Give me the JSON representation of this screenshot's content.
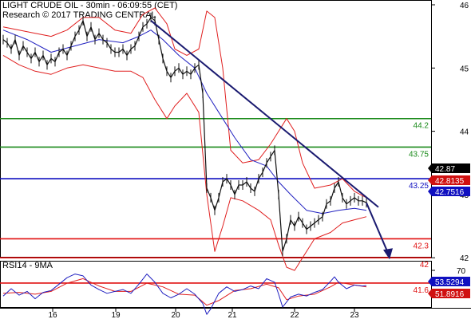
{
  "header": {
    "line1": "LIGHT CRUDE OIL - 30min - 06:09:55 (CET)",
    "line2": "Research © 2017 TRADING CENTRAL"
  },
  "rsi_header": "RSI14 - 9MA",
  "colors": {
    "price": "#111111",
    "bollinger": "#e02020",
    "moving_average": "#2020c0",
    "trendline": "#1a1a70",
    "resistance": "#1a8a1a",
    "pivot": "#1010c0",
    "support": "#e01010",
    "tag_black": "#000000",
    "tag_red": "#d01010",
    "tag_blue": "#1010c0"
  },
  "chart_data": [
    {
      "type": "line",
      "title": "LIGHT CRUDE OIL - 30min",
      "y_ticks": [
        46,
        45,
        44,
        43,
        42
      ],
      "ylim": [
        41.4,
        46.1
      ],
      "x_ticks": [
        "16",
        "19",
        "20",
        "21",
        "22",
        "23"
      ],
      "levels": [
        {
          "value": 44.2,
          "label": "44.2",
          "kind": "resistance"
        },
        {
          "value": 43.75,
          "label": "43.75",
          "kind": "resistance"
        },
        {
          "value": 43.25,
          "label": "43.25",
          "kind": "pivot"
        },
        {
          "value": 42.3,
          "label": "42.3",
          "kind": "support"
        },
        {
          "value": 42.0,
          "label": "42",
          "kind": "support"
        },
        {
          "value": 41.6,
          "label": "41.6",
          "kind": "support"
        }
      ],
      "price_tags": [
        {
          "label": "42.87",
          "value": 42.87,
          "style": "black"
        },
        {
          "label": "42.8135",
          "value": 42.8135,
          "style": "red"
        },
        {
          "label": "42.7516",
          "value": 42.7516,
          "style": "blue"
        }
      ],
      "series": [
        {
          "name": "price",
          "values": [
            [
              0,
              45.45
            ],
            [
              5,
              45.4
            ],
            [
              10,
              45.3
            ],
            [
              15,
              45.45
            ],
            [
              20,
              45.2
            ],
            [
              25,
              45.35
            ],
            [
              30,
              45.25
            ],
            [
              35,
              45.15
            ],
            [
              40,
              45.25
            ],
            [
              45,
              45.1
            ],
            [
              50,
              45.2
            ],
            [
              55,
              45.05
            ],
            [
              60,
              45.15
            ],
            [
              65,
              45.1
            ],
            [
              70,
              45.25
            ],
            [
              75,
              45.3
            ],
            [
              80,
              45.2
            ],
            [
              85,
              45.35
            ],
            [
              90,
              45.5
            ],
            [
              95,
              45.6
            ],
            [
              100,
              45.75
            ],
            [
              105,
              45.5
            ],
            [
              110,
              45.65
            ],
            [
              115,
              45.45
            ],
            [
              120,
              45.55
            ],
            [
              125,
              45.45
            ],
            [
              130,
              45.4
            ],
            [
              135,
              45.3
            ],
            [
              140,
              45.25
            ],
            [
              145,
              45.25
            ],
            [
              150,
              45.3
            ],
            [
              155,
              45.2
            ],
            [
              160,
              45.3
            ],
            [
              165,
              45.35
            ],
            [
              170,
              45.5
            ],
            [
              175,
              45.65
            ],
            [
              180,
              45.7
            ],
            [
              185,
              45.8
            ],
            [
              190,
              45.75
            ],
            [
              195,
              45.45
            ],
            [
              200,
              45.15
            ],
            [
              205,
              44.95
            ],
            [
              210,
              44.85
            ],
            [
              215,
              44.95
            ],
            [
              220,
              45.0
            ],
            [
              225,
              44.9
            ],
            [
              230,
              44.95
            ],
            [
              235,
              44.9
            ],
            [
              240,
              45.0
            ],
            [
              245,
              45.05
            ],
            [
              250,
              44.6
            ],
            [
              255,
              43.1
            ],
            [
              260,
              42.95
            ],
            [
              265,
              42.75
            ],
            [
              270,
              42.95
            ],
            [
              275,
              43.2
            ],
            [
              280,
              43.25
            ],
            [
              285,
              43.15
            ],
            [
              290,
              43.0
            ],
            [
              295,
              43.15
            ],
            [
              300,
              43.15
            ],
            [
              305,
              43.2
            ],
            [
              310,
              43.1
            ],
            [
              315,
              43.05
            ],
            [
              320,
              43.25
            ],
            [
              325,
              43.35
            ],
            [
              330,
              43.5
            ],
            [
              335,
              43.6
            ],
            [
              340,
              43.7
            ],
            [
              345,
              43.0
            ],
            [
              350,
              42.1
            ],
            [
              355,
              42.3
            ],
            [
              360,
              42.6
            ],
            [
              365,
              42.5
            ],
            [
              370,
              42.65
            ],
            [
              375,
              42.55
            ],
            [
              380,
              42.45
            ],
            [
              385,
              42.5
            ],
            [
              390,
              42.55
            ],
            [
              395,
              42.6
            ],
            [
              400,
              42.65
            ],
            [
              405,
              42.85
            ],
            [
              410,
              42.9
            ],
            [
              415,
              43.1
            ],
            [
              420,
              43.2
            ],
            [
              425,
              42.95
            ],
            [
              430,
              42.85
            ],
            [
              435,
              42.9
            ],
            [
              440,
              42.95
            ],
            [
              445,
              42.9
            ],
            [
              450,
              42.9
            ],
            [
              455,
              42.87
            ]
          ]
        },
        {
          "name": "moving-average",
          "values": [
            [
              0,
              45.6
            ],
            [
              30,
              45.45
            ],
            [
              60,
              45.25
            ],
            [
              90,
              45.35
            ],
            [
              120,
              45.45
            ],
            [
              150,
              45.4
            ],
            [
              170,
              45.5
            ],
            [
              185,
              45.6
            ],
            [
              200,
              45.45
            ],
            [
              220,
              45.2
            ],
            [
              240,
              45.0
            ],
            [
              255,
              44.6
            ],
            [
              270,
              44.3
            ],
            [
              290,
              43.9
            ],
            [
              310,
              43.55
            ],
            [
              330,
              43.45
            ],
            [
              345,
              43.2
            ],
            [
              360,
              43.0
            ],
            [
              380,
              42.75
            ],
            [
              400,
              42.7
            ],
            [
              420,
              42.75
            ],
            [
              440,
              42.78
            ],
            [
              455,
              42.75
            ]
          ]
        },
        {
          "name": "bollinger-upper",
          "values": [
            [
              0,
              45.65
            ],
            [
              20,
              45.6
            ],
            [
              40,
              45.55
            ],
            [
              60,
              45.5
            ],
            [
              80,
              45.6
            ],
            [
              100,
              45.8
            ],
            [
              120,
              45.8
            ],
            [
              140,
              45.6
            ],
            [
              160,
              45.55
            ],
            [
              175,
              45.85
            ],
            [
              190,
              45.95
            ],
            [
              205,
              45.7
            ],
            [
              215,
              45.3
            ],
            [
              230,
              45.2
            ],
            [
              245,
              45.3
            ],
            [
              255,
              45.9
            ],
            [
              265,
              45.8
            ],
            [
              275,
              45.0
            ],
            [
              285,
              43.7
            ],
            [
              300,
              43.5
            ],
            [
              320,
              43.55
            ],
            [
              335,
              43.8
            ],
            [
              345,
              44.0
            ],
            [
              355,
              44.2
            ],
            [
              365,
              44.0
            ],
            [
              375,
              43.5
            ],
            [
              390,
              43.1
            ],
            [
              410,
              43.15
            ],
            [
              425,
              43.25
            ],
            [
              440,
              43.05
            ],
            [
              455,
              42.95
            ]
          ]
        },
        {
          "name": "bollinger-lower",
          "values": [
            [
              0,
              45.2
            ],
            [
              20,
              45.05
            ],
            [
              40,
              44.95
            ],
            [
              60,
              44.9
            ],
            [
              80,
              45.0
            ],
            [
              100,
              45.05
            ],
            [
              120,
              45.0
            ],
            [
              140,
              44.95
            ],
            [
              160,
              44.95
            ],
            [
              175,
              44.85
            ],
            [
              190,
              44.5
            ],
            [
              205,
              44.2
            ],
            [
              215,
              44.4
            ],
            [
              230,
              44.6
            ],
            [
              245,
              44.3
            ],
            [
              255,
              43.0
            ],
            [
              265,
              42.1
            ],
            [
              275,
              42.5
            ],
            [
              285,
              42.95
            ],
            [
              300,
              42.9
            ],
            [
              320,
              42.75
            ],
            [
              335,
              42.6
            ],
            [
              345,
              42.2
            ],
            [
              355,
              41.85
            ],
            [
              365,
              41.8
            ],
            [
              375,
              42.0
            ],
            [
              390,
              42.3
            ],
            [
              410,
              42.4
            ],
            [
              425,
              42.55
            ],
            [
              440,
              42.6
            ],
            [
              455,
              42.65
            ]
          ]
        }
      ],
      "trendline": [
        [
          185,
          45.75
        ],
        [
          470,
          42.8
        ]
      ],
      "projection": [
        [
          455,
          42.87
        ],
        [
          482,
          42.0
        ]
      ]
    },
    {
      "type": "line",
      "title": "RSI14 - 9MA",
      "y_ticks": [
        70
      ],
      "ylim": [
        20,
        80
      ],
      "price_tags": [
        {
          "label": "53.5294",
          "value": 53.5294,
          "style": "blue"
        },
        {
          "label": "51.8916",
          "value": 51.8916,
          "style": "red"
        }
      ],
      "series": [
        {
          "name": "rsi",
          "values": [
            [
              0,
              42
            ],
            [
              10,
              50
            ],
            [
              20,
              43
            ],
            [
              30,
              47
            ],
            [
              40,
              39
            ],
            [
              50,
              46
            ],
            [
              60,
              48
            ],
            [
              70,
              55
            ],
            [
              80,
              62
            ],
            [
              90,
              66
            ],
            [
              100,
              64
            ],
            [
              110,
              54
            ],
            [
              120,
              49
            ],
            [
              130,
              45
            ],
            [
              140,
              47
            ],
            [
              150,
              49
            ],
            [
              160,
              45
            ],
            [
              170,
              55
            ],
            [
              180,
              66
            ],
            [
              190,
              57
            ],
            [
              200,
              45
            ],
            [
              210,
              40
            ],
            [
              220,
              44
            ],
            [
              230,
              50
            ],
            [
              240,
              44
            ],
            [
              250,
              34
            ],
            [
              255,
              22
            ],
            [
              260,
              28
            ],
            [
              270,
              45
            ],
            [
              280,
              52
            ],
            [
              290,
              47
            ],
            [
              300,
              49
            ],
            [
              310,
              53
            ],
            [
              320,
              50
            ],
            [
              330,
              61
            ],
            [
              340,
              57
            ],
            [
              345,
              44
            ],
            [
              350,
              30
            ],
            [
              360,
              41
            ],
            [
              370,
              44
            ],
            [
              380,
              42
            ],
            [
              390,
              46
            ],
            [
              400,
              49
            ],
            [
              410,
              58
            ],
            [
              415,
              63
            ],
            [
              420,
              57
            ],
            [
              430,
              50
            ],
            [
              440,
              54
            ],
            [
              450,
              53
            ],
            [
              455,
              53.5
            ]
          ]
        },
        {
          "name": "rsi-ma",
          "values": [
            [
              0,
              45
            ],
            [
              20,
              46
            ],
            [
              40,
              44
            ],
            [
              60,
              47
            ],
            [
              80,
              56
            ],
            [
              100,
              61
            ],
            [
              120,
              53
            ],
            [
              140,
              47
            ],
            [
              160,
              47
            ],
            [
              180,
              56
            ],
            [
              200,
              52
            ],
            [
              220,
              44
            ],
            [
              240,
              43
            ],
            [
              255,
              32
            ],
            [
              270,
              37
            ],
            [
              290,
              48
            ],
            [
              310,
              50
            ],
            [
              330,
              55
            ],
            [
              345,
              51
            ],
            [
              355,
              38
            ],
            [
              370,
              42
            ],
            [
              390,
              44
            ],
            [
              410,
              52
            ],
            [
              420,
              57
            ],
            [
              440,
              54
            ],
            [
              455,
              51.9
            ]
          ]
        }
      ]
    }
  ]
}
